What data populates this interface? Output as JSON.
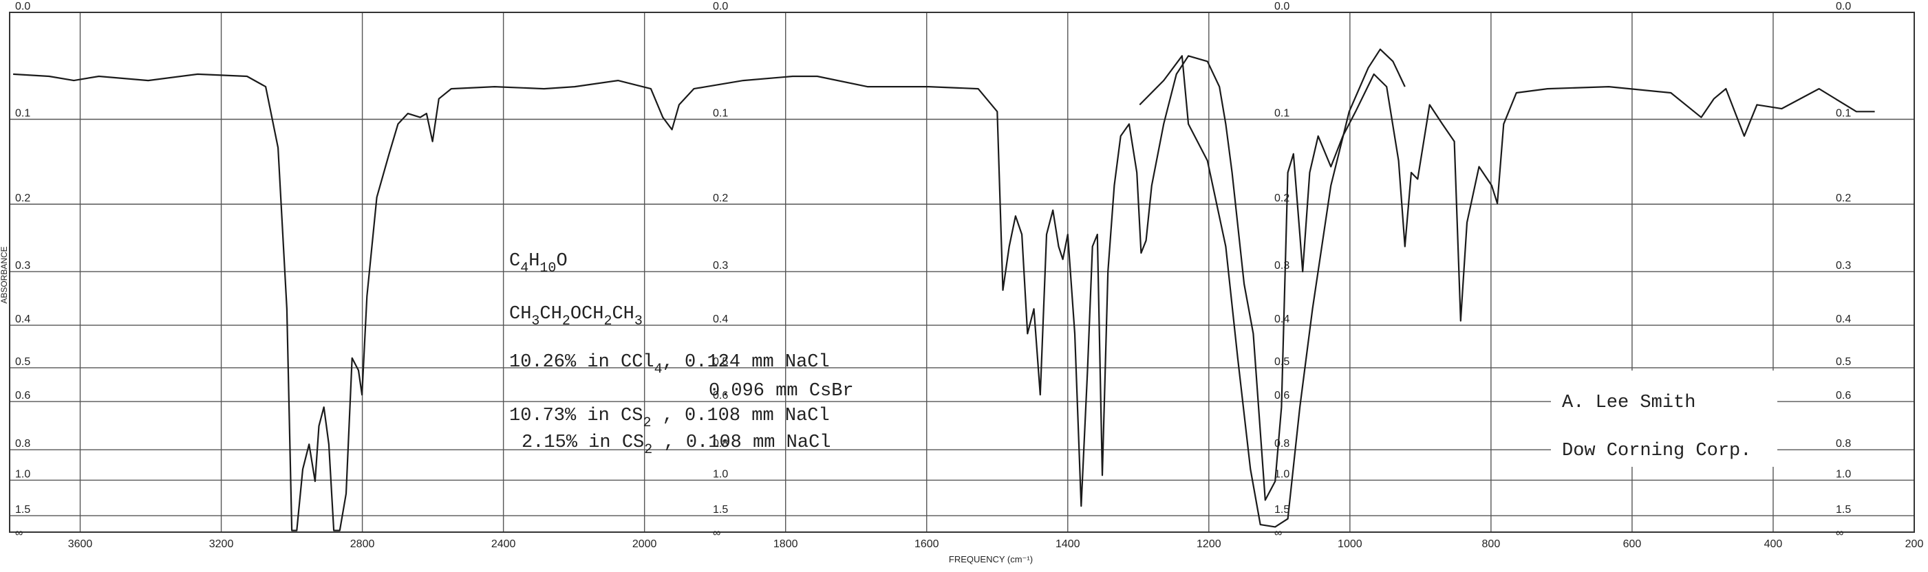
{
  "chart_data": {
    "type": "line",
    "x_label": "FREQUENCY (cm⁻¹)",
    "y_label": "ABSORBANCE",
    "x_scale": "piecewise",
    "y_scale": "absorbance",
    "xlim": [
      3800,
      200
    ],
    "xticks": [
      3600,
      3200,
      2800,
      2400,
      2000,
      1800,
      1600,
      1400,
      1200,
      1000,
      800,
      600,
      400,
      200
    ],
    "yticks": [
      {
        "value": 0,
        "label": "0.0"
      },
      0.1,
      0.2,
      0.3,
      0.4,
      0.5,
      0.6,
      0.8,
      {
        "value": 1,
        "label": "1.0"
      },
      1.5
    ],
    "y_infinity_label": "∞",
    "grid": true,
    "series": [
      {
        "color": "#1a1a1a",
        "x": [
          3790,
          3688,
          3618,
          3547,
          3407,
          3267,
          3127,
          3074,
          3039,
          3014,
          3000,
          2986,
          2969,
          2951,
          2934,
          2923,
          2909,
          2895,
          2881,
          2864,
          2846,
          2829,
          2811,
          2801,
          2787,
          2759,
          2724,
          2699,
          2671,
          2636,
          2618,
          2601,
          2583,
          2548,
          2425,
          2285,
          2198,
          2075,
          1991,
          1974,
          1961,
          1951,
          1930,
          1860,
          1790,
          1755,
          1684,
          1597,
          1527,
          1500,
          1492,
          1483,
          1474,
          1465,
          1457,
          1448,
          1439,
          1430,
          1421,
          1413,
          1407,
          1400,
          1390,
          1381,
          1372,
          1365,
          1358,
          1351,
          1343,
          1334,
          1325,
          1313,
          1302,
          1296,
          1289,
          1281,
          1264,
          1246,
          1229,
          1202,
          1185,
          1176,
          1167,
          1150,
          1137,
          1120,
          1106,
          1097,
          1088,
          1080,
          1071,
          1067,
          1057,
          1045,
          1027,
          1010,
          992,
          966,
          948,
          931,
          922,
          913,
          904,
          887,
          869,
          852,
          843,
          834,
          817,
          799,
          791,
          782,
          764,
          720,
          633,
          545,
          502,
          484,
          467,
          441,
          423,
          388,
          335,
          282,
          256
        ],
        "values": [
          0.055,
          0.057,
          0.061,
          0.057,
          0.061,
          0.055,
          0.057,
          0.067,
          0.131,
          0.367,
          2.5,
          2.5,
          0.917,
          0.772,
          1.01,
          0.69,
          0.619,
          0.772,
          2.5,
          2.5,
          1.13,
          0.475,
          0.507,
          0.578,
          0.343,
          0.191,
          0.138,
          0.105,
          0.094,
          0.098,
          0.094,
          0.124,
          0.079,
          0.069,
          0.067,
          0.069,
          0.067,
          0.061,
          0.069,
          0.098,
          0.111,
          0.085,
          0.069,
          0.061,
          0.057,
          0.057,
          0.067,
          0.067,
          0.069,
          0.092,
          0.332,
          0.26,
          0.216,
          0.242,
          0.418,
          0.367,
          0.578,
          0.242,
          0.208,
          0.26,
          0.28,
          0.242,
          0.418,
          1.3,
          0.507,
          0.26,
          0.242,
          0.961,
          0.3,
          0.176,
          0.118,
          0.105,
          0.16,
          0.27,
          0.251,
          0.176,
          0.105,
          0.055,
          0.038,
          0.043,
          0.067,
          0.105,
          0.16,
          0.321,
          0.418,
          1.21,
          1.01,
          0.619,
          0.16,
          0.138,
          0.242,
          0.3,
          0.16,
          0.118,
          0.153,
          0.118,
          0.092,
          0.055,
          0.067,
          0.146,
          0.26,
          0.16,
          0.168,
          0.085,
          0.105,
          0.124,
          0.391,
          0.225,
          0.153,
          0.176,
          0.199,
          0.105,
          0.073,
          0.069,
          0.067,
          0.073,
          0.098,
          0.079,
          0.069,
          0.118,
          0.085,
          0.089,
          0.069,
          0.092,
          0.092
        ]
      },
      {
        "color": "#1a1a1a",
        "x": [
          1298,
          1264,
          1238,
          1229,
          1202,
          1176,
          1159,
          1141,
          1127,
          1106,
          1088,
          1071,
          1053,
          1027,
          1001,
          974,
          957,
          939,
          922
        ],
        "values": [
          0.085,
          0.061,
          0.038,
          0.105,
          0.146,
          0.26,
          0.475,
          0.917,
          1.84,
          2.0,
          1.59,
          0.619,
          0.367,
          0.176,
          0.092,
          0.049,
          0.032,
          0.043,
          0.067
        ]
      }
    ],
    "sample_text": [
      [
        "C",
        "4",
        "H",
        "10",
        "O"
      ],
      [
        "CH",
        "3",
        "CH",
        "2",
        "OCH",
        "2",
        "CH",
        "3"
      ],
      [
        "10.26% in CCl",
        "4",
        ", 0.124 mm NaCl"
      ],
      [
        "0.096 mm CsBr"
      ],
      [
        "10.73% in CS",
        "2",
        " , 0.108 mm NaCl"
      ],
      [
        "2.15% in CS",
        "2",
        " , 0.108 mm NaCl"
      ]
    ],
    "credit": [
      "A. Lee Smith",
      "Dow Corning Corp."
    ]
  }
}
